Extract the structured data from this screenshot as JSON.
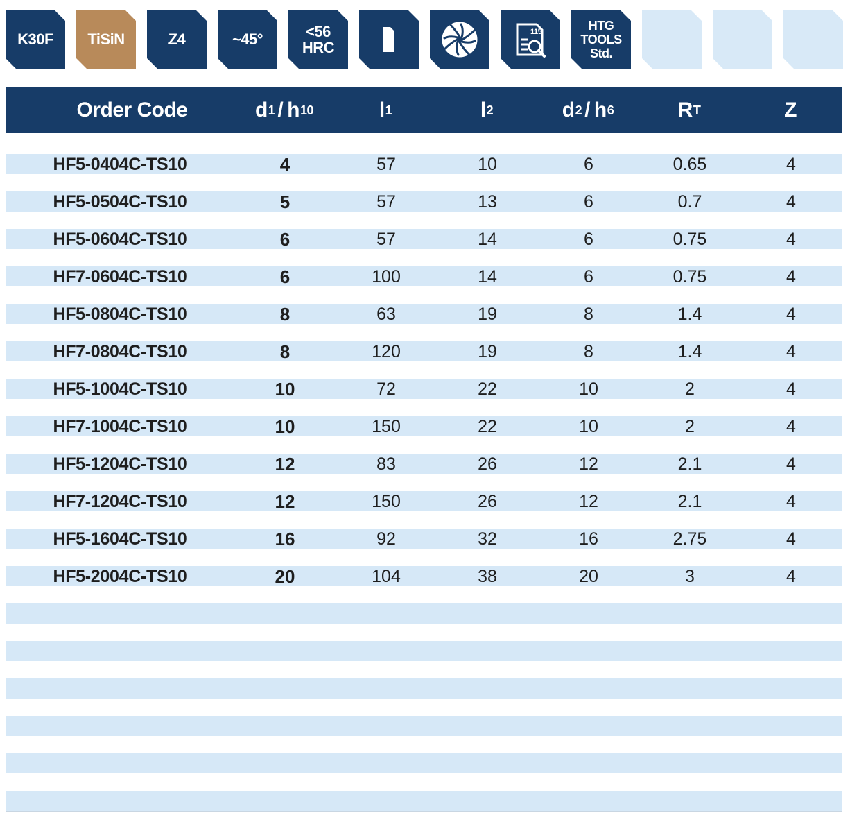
{
  "badges": [
    {
      "type": "text",
      "text": "K30F"
    },
    {
      "type": "text",
      "text": "TiSiN"
    },
    {
      "type": "text",
      "text": "Z4"
    },
    {
      "type": "text",
      "text": "~45°"
    },
    {
      "type": "two-line",
      "line1": "<56",
      "line2": "HRC"
    },
    {
      "type": "icon",
      "icon": "shank-icon"
    },
    {
      "type": "icon",
      "icon": "end-mill-cross-section-icon"
    },
    {
      "type": "icon",
      "icon": "cutting-data-page-icon",
      "text": "115"
    },
    {
      "type": "three-line",
      "line1": "HTG",
      "line2": "TOOLS",
      "line3": "Std."
    },
    {
      "type": "empty"
    },
    {
      "type": "empty"
    },
    {
      "type": "empty"
    }
  ],
  "colors": {
    "navy": "#173c68",
    "bronze": "#b88a5a",
    "stripe": "#d6e8f7",
    "empty_badge": "#d8e9f7"
  },
  "table": {
    "headers": {
      "order_code": "Order Code",
      "d1": {
        "main": "d",
        "sub": "1",
        "sep": "/",
        "main2": "h",
        "sub2": "10"
      },
      "l1": {
        "main": "l",
        "sub": "1"
      },
      "l2": {
        "main": "l",
        "sub": "2"
      },
      "d2": {
        "main": "d",
        "sub": "2",
        "sep": "/",
        "main2": "h",
        "sub2": "6"
      },
      "rt": {
        "main": "R",
        "sub": "T"
      },
      "z": "Z"
    },
    "rows": [
      {
        "code": "HF5-0404C-TS10",
        "d1": "4",
        "l1": "57",
        "l2": "10",
        "d2": "6",
        "rt": "0.65",
        "z": "4"
      },
      {
        "code": "HF5-0504C-TS10",
        "d1": "5",
        "l1": "57",
        "l2": "13",
        "d2": "6",
        "rt": "0.7",
        "z": "4"
      },
      {
        "code": "HF5-0604C-TS10",
        "d1": "6",
        "l1": "57",
        "l2": "14",
        "d2": "6",
        "rt": "0.75",
        "z": "4"
      },
      {
        "code": "HF7-0604C-TS10",
        "d1": "6",
        "l1": "100",
        "l2": "14",
        "d2": "6",
        "rt": "0.75",
        "z": "4"
      },
      {
        "code": "HF5-0804C-TS10",
        "d1": "8",
        "l1": "63",
        "l2": "19",
        "d2": "8",
        "rt": "1.4",
        "z": "4"
      },
      {
        "code": "HF7-0804C-TS10",
        "d1": "8",
        "l1": "120",
        "l2": "19",
        "d2": "8",
        "rt": "1.4",
        "z": "4"
      },
      {
        "code": "HF5-1004C-TS10",
        "d1": "10",
        "l1": "72",
        "l2": "22",
        "d2": "10",
        "rt": "2",
        "z": "4"
      },
      {
        "code": "HF7-1004C-TS10",
        "d1": "10",
        "l1": "150",
        "l2": "22",
        "d2": "10",
        "rt": "2",
        "z": "4"
      },
      {
        "code": "HF5-1204C-TS10",
        "d1": "12",
        "l1": "83",
        "l2": "26",
        "d2": "12",
        "rt": "2.1",
        "z": "4"
      },
      {
        "code": "HF7-1204C-TS10",
        "d1": "12",
        "l1": "150",
        "l2": "26",
        "d2": "12",
        "rt": "2.1",
        "z": "4"
      },
      {
        "code": "HF5-1604C-TS10",
        "d1": "16",
        "l1": "92",
        "l2": "32",
        "d2": "16",
        "rt": "2.75",
        "z": "4"
      },
      {
        "code": "HF5-2004C-TS10",
        "d1": "20",
        "l1": "104",
        "l2": "38",
        "d2": "20",
        "rt": "3",
        "z": "4"
      }
    ]
  }
}
